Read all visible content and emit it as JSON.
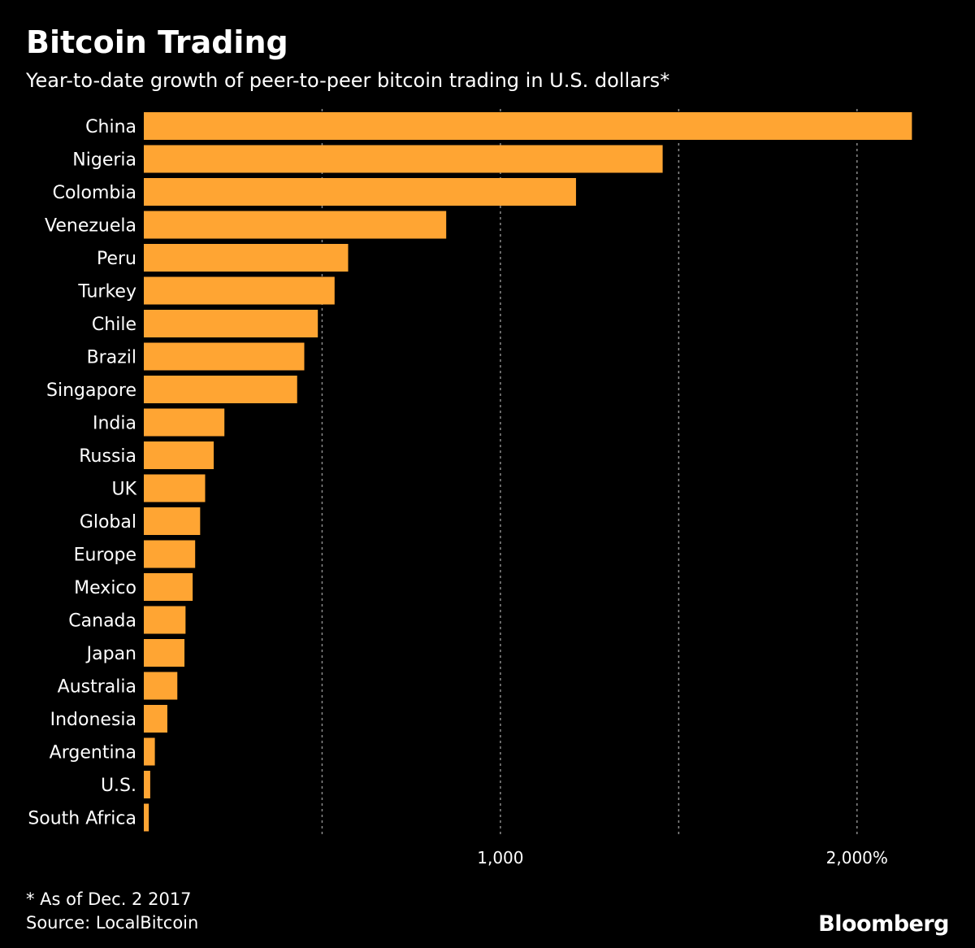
{
  "chart_data": {
    "type": "bar",
    "orientation": "horizontal",
    "title": "Bitcoin Trading",
    "subtitle": "Year-to-date growth of peer-to-peer bitcoin trading in U.S. dollars*",
    "categories": [
      "China",
      "Nigeria",
      "Colombia",
      "Venezuela",
      "Peru",
      "Turkey",
      "Chile",
      "Brazil",
      "Singapore",
      "India",
      "Russia",
      "UK",
      "Global",
      "Europe",
      "Mexico",
      "Canada",
      "Japan",
      "Australia",
      "Indonesia",
      "Argentina",
      "U.S.",
      "South Africa"
    ],
    "values": [
      2154,
      1455,
      1212,
      848,
      573,
      535,
      488,
      450,
      430,
      226,
      196,
      172,
      158,
      144,
      137,
      117,
      114,
      94,
      66,
      31,
      18,
      14
    ],
    "xlim": [
      0,
      2160
    ],
    "xticks": [
      {
        "value": 1000,
        "label": "1,000"
      },
      {
        "value": 2000,
        "label": "2,000%"
      }
    ],
    "gridlines": [
      500,
      1000,
      1500,
      2000
    ],
    "grid": true,
    "bar_color": "#FFA533",
    "background": "#000000"
  },
  "footnote": "* As of Dec. 2 2017",
  "source": "Source: LocalBitcoin",
  "logo": "Bloomberg"
}
